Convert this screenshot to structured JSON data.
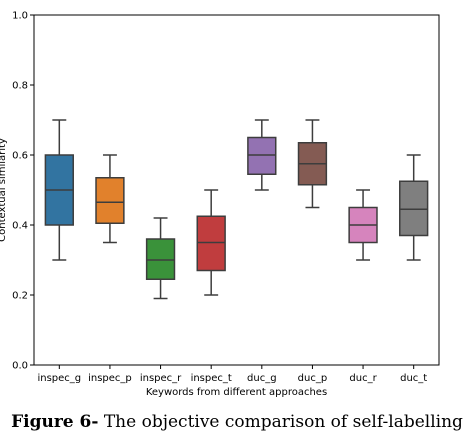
{
  "chart_data": {
    "type": "box",
    "xlabel": "Keywords from different approaches",
    "ylabel": "Contextual similarity",
    "ylim": [
      0.0,
      1.0
    ],
    "yticks": [
      "0.0",
      "0.2",
      "0.4",
      "0.6",
      "0.8",
      "1.0"
    ],
    "grid": false,
    "categories": [
      "inspec_g",
      "inspec_p",
      "inspec_r",
      "inspec_t",
      "duc_g",
      "duc_p",
      "duc_r",
      "duc_t"
    ],
    "boxes": [
      {
        "min": 0.3,
        "q1": 0.4,
        "median": 0.5,
        "q3": 0.6,
        "max": 0.7,
        "color": "#3274a1"
      },
      {
        "min": 0.35,
        "q1": 0.405,
        "median": 0.465,
        "q3": 0.535,
        "max": 0.6,
        "color": "#e1812c"
      },
      {
        "min": 0.19,
        "q1": 0.245,
        "median": 0.3,
        "q3": 0.36,
        "max": 0.42,
        "color": "#3a923a"
      },
      {
        "min": 0.2,
        "q1": 0.27,
        "median": 0.35,
        "q3": 0.425,
        "max": 0.5,
        "color": "#c03d3e"
      },
      {
        "min": 0.5,
        "q1": 0.545,
        "median": 0.6,
        "q3": 0.65,
        "max": 0.7,
        "color": "#9372b2"
      },
      {
        "min": 0.45,
        "q1": 0.515,
        "median": 0.575,
        "q3": 0.635,
        "max": 0.7,
        "color": "#845b53"
      },
      {
        "min": 0.3,
        "q1": 0.35,
        "median": 0.4,
        "q3": 0.45,
        "max": 0.5,
        "color": "#d684bd"
      },
      {
        "min": 0.3,
        "q1": 0.37,
        "median": 0.445,
        "q3": 0.525,
        "max": 0.6,
        "color": "#7f7f7f"
      }
    ]
  },
  "caption": {
    "label": "Figure 6-",
    "text": " The objective comparison of self-labelling"
  }
}
